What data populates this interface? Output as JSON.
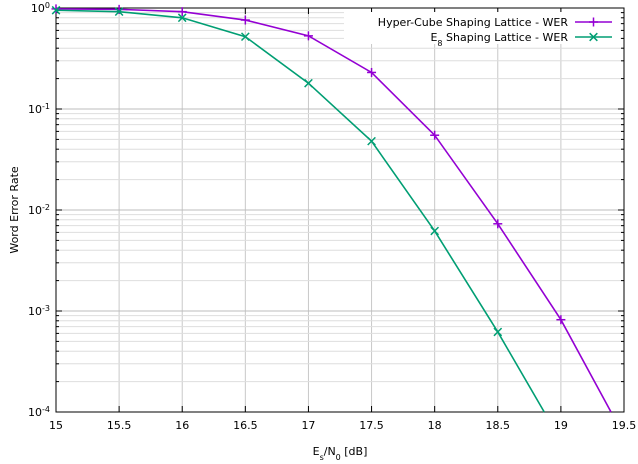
{
  "chart_data": {
    "type": "line",
    "xlabel": "E_s/N_0 [dB]",
    "ylabel": "Word Error Rate",
    "yscale": "log",
    "xlim": [
      15,
      19.5
    ],
    "ylim": [
      0.0001,
      1
    ],
    "x_ticks": [
      15,
      15.5,
      16,
      16.5,
      17,
      17.5,
      18,
      18.5,
      19,
      19.5
    ],
    "x_tick_labels": [
      "15",
      "15.5",
      "16",
      "16.5",
      "17",
      "17.5",
      "18",
      "18.5",
      "19",
      "19.5"
    ],
    "y_ticks": [
      1,
      0.1,
      0.01,
      0.001,
      0.0001
    ],
    "y_tick_labels": [
      "10^0",
      "10^-1",
      "10^-2",
      "10^-3",
      "10^-4"
    ],
    "grid": true,
    "legend_position": "top-right",
    "series": [
      {
        "name": "Hyper-Cube Shaping Lattice - WER",
        "color": "#9400d3",
        "marker": "plus",
        "x": [
          15,
          15.5,
          16,
          16.5,
          17,
          17.5,
          18,
          18.5,
          19,
          19.5
        ],
        "y": [
          0.98,
          0.97,
          0.92,
          0.76,
          0.53,
          0.23,
          0.055,
          0.0073,
          0.00082,
          5.8e-05
        ]
      },
      {
        "name": "E_8 Shaping Lattice - WER",
        "color": "#009e73",
        "marker": "cross",
        "x": [
          15,
          15.5,
          16,
          16.5,
          17,
          17.5,
          18,
          18.5,
          19
        ],
        "y": [
          0.95,
          0.92,
          0.8,
          0.52,
          0.18,
          0.048,
          0.0062,
          0.00062,
          5.2e-05
        ]
      }
    ]
  }
}
